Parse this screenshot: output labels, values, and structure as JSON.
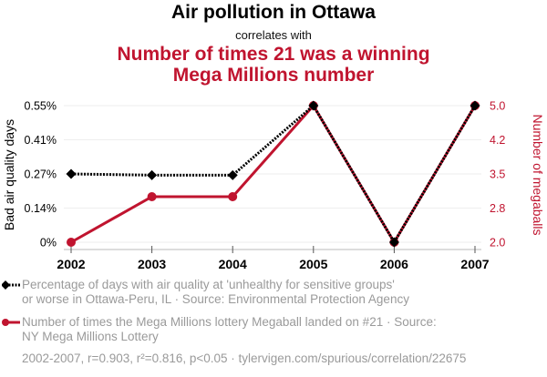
{
  "header": {
    "title": "Air pollution in Ottawa",
    "connector": "correlates with",
    "subtitle_line1": "Number of times 21 was a winning",
    "subtitle_line2": "Mega Millions number"
  },
  "colors": {
    "series1": "#000000",
    "series2": "#c0142f",
    "grid": "#eeeeee",
    "muted_text": "#9a9a9a"
  },
  "legend": {
    "series1_line1": "Percentage of days with air quality at 'unhealthy for sensitive groups'",
    "series1_line2": "or worse in Ottawa-Peru, IL · Source: Environmental Protection Agency",
    "series2_line1": "Number of times the Mega Millions lottery Megaball landed on #21 · Source:",
    "series2_line2": "NY Mega Millions Lottery"
  },
  "footer": "2002-2007, r=0.903, r²=0.816, p<0.05 · tylervigen.com/spurious/correlation/22675",
  "chart_data": {
    "type": "line",
    "title": "Air pollution in Ottawa correlates with Number of times 21 was a winning Mega Millions number",
    "x": [
      "2002",
      "2003",
      "2004",
      "2005",
      "2006",
      "2007"
    ],
    "xlabel": "",
    "grid": true,
    "legend_position": "bottom",
    "left_axis": {
      "label": "Bad air quality days",
      "ticks": [
        "0%",
        "0.14%",
        "0.27%",
        "0.41%",
        "0.55%"
      ],
      "range": [
        0,
        0.55
      ]
    },
    "right_axis": {
      "label": "Number of megaballs",
      "ticks": [
        "2.0",
        "2.8",
        "3.5",
        "4.2",
        "5.0"
      ],
      "range": [
        2.0,
        5.0
      ]
    },
    "series": [
      {
        "name": "Percentage of days with air quality at 'unhealthy for sensitive groups' or worse in Ottawa-Peru, IL",
        "axis": "left",
        "unit": "%",
        "style": "dotted",
        "marker": "diamond",
        "values": [
          0.275,
          0.27,
          0.27,
          0.55,
          0,
          0.55
        ]
      },
      {
        "name": "Number of times the Mega Millions lottery Megaball landed on #21",
        "axis": "right",
        "style": "solid",
        "marker": "circle",
        "values": [
          2,
          3,
          3,
          5,
          2,
          5
        ]
      }
    ]
  }
}
